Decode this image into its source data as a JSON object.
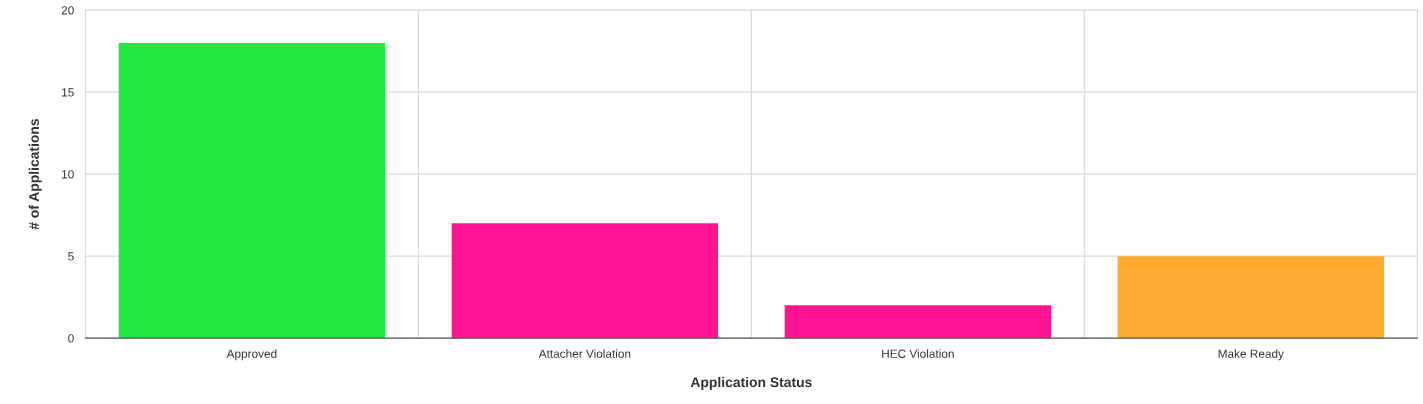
{
  "chart_data": {
    "type": "bar",
    "xlabel": "Application Status",
    "ylabel": "# of Applications",
    "categories": [
      "Approved",
      "Attacher Violation",
      "HEC Violation",
      "Make Ready"
    ],
    "values": [
      18,
      7,
      2,
      5
    ],
    "colors": [
      "#22e844",
      "#ff1493",
      "#ff1493",
      "#ffaa33"
    ],
    "ylim": [
      0,
      20
    ],
    "yticks": [
      0,
      5,
      10,
      15,
      20
    ],
    "grid": true
  }
}
